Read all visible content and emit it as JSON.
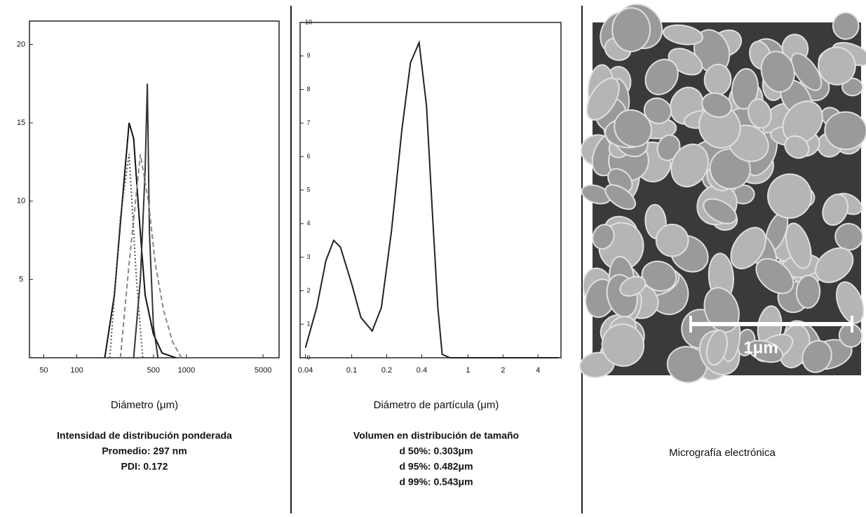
{
  "chart_data": [
    {
      "type": "line",
      "xscale": "log",
      "xlabel": "Diámetro (μm)",
      "notes": [
        "Intensidad de distribución ponderada",
        "Promedio: 297 nm",
        "PDI: 0.172"
      ],
      "xlim": [
        37,
        7000
      ],
      "ylim": [
        0,
        21.5
      ],
      "xticks": [
        50,
        100,
        500,
        1000,
        5000
      ],
      "yticks": [
        5,
        10,
        15,
        20
      ],
      "series": [
        {
          "color": "#111111",
          "style": "solid",
          "x": [
            180,
            220,
            260,
            300,
            330,
            370,
            420,
            500,
            600,
            800
          ],
          "values": [
            0,
            4,
            10,
            15,
            14,
            9,
            4,
            1.5,
            0.3,
            0
          ]
        },
        {
          "color": "#333333",
          "style": "solid",
          "x": [
            330,
            380,
            420,
            440,
            460,
            500,
            550
          ],
          "values": [
            0,
            5,
            12,
            17.5,
            8,
            2,
            0
          ]
        },
        {
          "color": "#888888",
          "style": "dashed",
          "x": [
            250,
            300,
            380,
            450,
            520,
            620,
            750,
            900
          ],
          "values": [
            0,
            6,
            13,
            10,
            6,
            3,
            1,
            0
          ]
        },
        {
          "color": "#555555",
          "style": "dotted",
          "x": [
            200,
            250,
            300,
            350,
            400
          ],
          "values": [
            0,
            9,
            13,
            5,
            0
          ]
        }
      ]
    },
    {
      "type": "line",
      "xscale": "log",
      "xlabel": "Diámetro de partícula (μm)",
      "notes": [
        "Volumen en distribución de tamaño",
        "d 50%: 0.303μm",
        "d 95%: 0.482μm",
        "d 99%: 0.543μm"
      ],
      "xlim": [
        0.036,
        6.3
      ],
      "ylim": [
        0,
        10
      ],
      "xticks": [
        0.04,
        0.1,
        0.2,
        0.4,
        1,
        2,
        4
      ],
      "yticks": [
        0,
        1,
        2,
        3,
        4,
        5,
        6,
        7,
        8,
        9,
        10
      ],
      "series": [
        {
          "color": "#222222",
          "style": "solid",
          "x": [
            0.04,
            0.05,
            0.06,
            0.07,
            0.08,
            0.1,
            0.12,
            0.15,
            0.18,
            0.22,
            0.27,
            0.32,
            0.38,
            0.44,
            0.5,
            0.55,
            0.6,
            0.7,
            1,
            2,
            6
          ],
          "values": [
            0.3,
            1.5,
            2.9,
            3.5,
            3.3,
            2.2,
            1.2,
            0.8,
            1.5,
            3.8,
            6.8,
            8.8,
            9.4,
            7.5,
            4,
            1.5,
            0.1,
            0,
            0,
            0,
            0
          ]
        }
      ]
    }
  ],
  "micrograph": {
    "scale_label": "1μm",
    "caption": "Micrografía electrónica"
  }
}
